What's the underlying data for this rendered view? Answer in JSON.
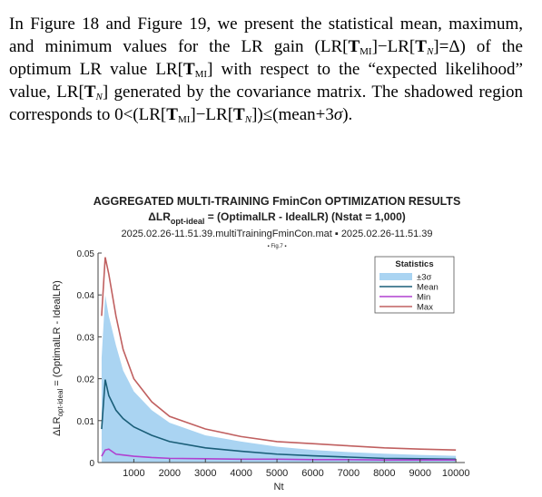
{
  "paragraph": {
    "runs": [
      "In Figure 18 and Figure 19, we present the statistical mean, maximum, and minimum values for the LR gain (LR[",
      "T",
      "MI",
      "]−LR[",
      "T",
      "N",
      "]=Δ) of the optimum LR value LR[",
      "T",
      "MI",
      "] with respect to the “expected likelihood” value, LR[",
      "T",
      "N",
      "] generated by the covariance matrix. The shadowed region corresponds to 0<(LR[",
      "T",
      "MI",
      "]−LR[",
      "T",
      "N",
      "])≤(mean+3",
      "σ",
      ")."
    ]
  },
  "chart_data": {
    "type": "line",
    "title": "AGGREGATED MULTI-TRAINING FminCon OPTIMIZATION RESULTS",
    "formula": [
      "ΔLR",
      "opt-ideal",
      " = (OptimalLR - IdealLR) (Nstat = 1,000)"
    ],
    "subtitle": "2025.02.26-11.51.39.multiTrainingFminCon.mat ▪ 2025.02.26-11.51.39",
    "figure_label": "▪ Fig.7 ▪",
    "y_label": [
      "ΔLR",
      "opt-ideal",
      " = (OptimalLR - IdealLR)"
    ],
    "x_label": "Nt",
    "legend_title": "Statistics",
    "x": [
      100,
      200,
      300,
      500,
      700,
      1000,
      1500,
      2000,
      3000,
      4000,
      5000,
      6000,
      7000,
      8000,
      9000,
      10000
    ],
    "series": [
      {
        "name": "±3σ",
        "color": "#aad4f2",
        "values": [
          0.025,
          0.04,
          0.035,
          0.028,
          0.022,
          0.017,
          0.0125,
          0.0095,
          0.0065,
          0.005,
          0.0038,
          0.003,
          0.0025,
          0.0021,
          0.0018,
          0.0016
        ],
        "lower": [
          0,
          0,
          0,
          0,
          0,
          0,
          0,
          0,
          0,
          0,
          0,
          0,
          0,
          0,
          0,
          0
        ]
      },
      {
        "name": "Mean",
        "color": "#1a5e78",
        "values": [
          0.008,
          0.0198,
          0.016,
          0.0125,
          0.0105,
          0.0085,
          0.0065,
          0.005,
          0.0035,
          0.0027,
          0.002,
          0.0016,
          0.0013,
          0.001,
          0.0009,
          0.0008
        ]
      },
      {
        "name": "Min",
        "color": "#b040d0",
        "values": [
          0.0015,
          0.003,
          0.0032,
          0.002,
          0.0018,
          0.0015,
          0.0012,
          0.001,
          0.0009,
          0.0008,
          0.0008,
          0.0007,
          0.0007,
          0.0006,
          0.0006,
          0.0006
        ]
      },
      {
        "name": "Max",
        "color": "#c06060",
        "values": [
          0.035,
          0.049,
          0.045,
          0.035,
          0.027,
          0.02,
          0.0145,
          0.011,
          0.008,
          0.0062,
          0.005,
          0.0045,
          0.004,
          0.0035,
          0.0032,
          0.003
        ]
      }
    ],
    "xlim": [
      0,
      10250
    ],
    "xticks": [
      1000,
      2000,
      3000,
      4000,
      5000,
      6000,
      7000,
      8000,
      9000,
      10000
    ],
    "ylim": [
      0,
      0.05
    ],
    "yticks": [
      0,
      0.01,
      0.02,
      0.03,
      0.04,
      0.05
    ]
  }
}
